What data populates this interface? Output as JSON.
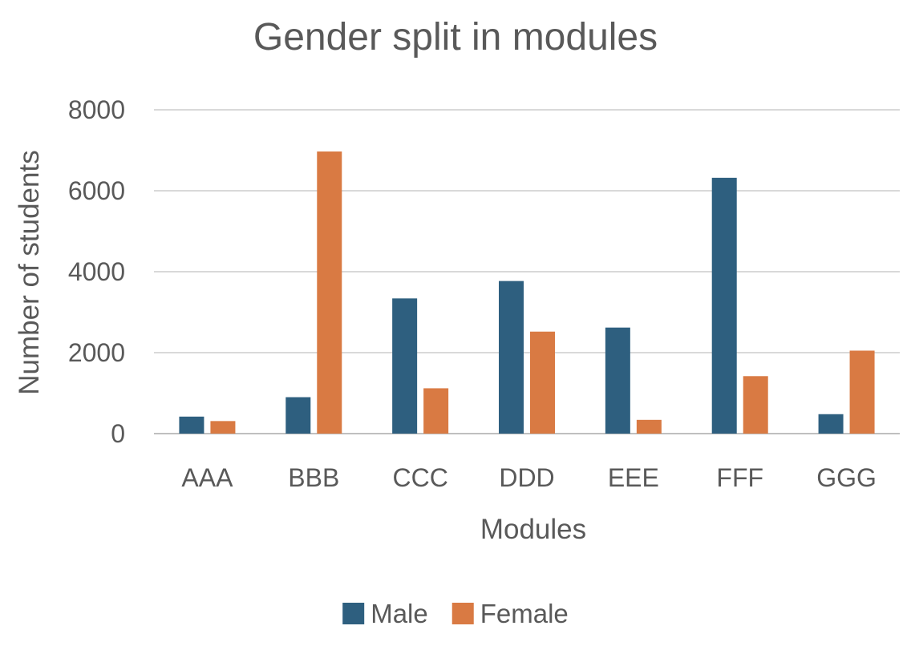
{
  "chart_data": {
    "type": "bar",
    "title": "Gender split in modules",
    "xlabel": "Modules",
    "ylabel": "Number of students",
    "categories": [
      "AAA",
      "BBB",
      "CCC",
      "DDD",
      "EEE",
      "FFF",
      "GGG"
    ],
    "series": [
      {
        "name": "Male",
        "color": "#2e5f7f",
        "values": [
          420,
          900,
          3340,
          3770,
          2620,
          6320,
          480
        ]
      },
      {
        "name": "Female",
        "color": "#d97a43",
        "values": [
          310,
          6970,
          1120,
          2520,
          340,
          1420,
          2050
        ]
      }
    ],
    "ylim": [
      0,
      8000
    ],
    "yticks": [
      0,
      2000,
      4000,
      6000,
      8000
    ],
    "grid": true,
    "legend_position": "bottom"
  }
}
